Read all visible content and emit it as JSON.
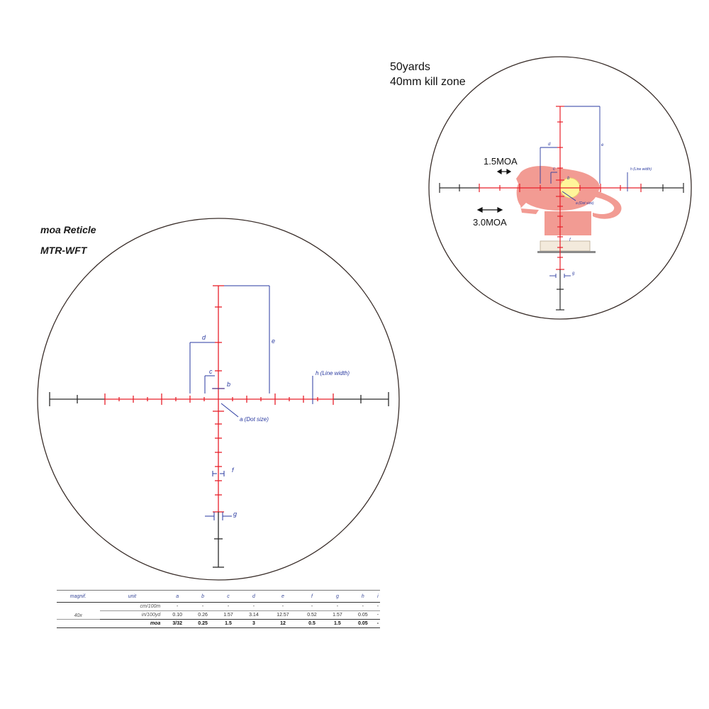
{
  "main_reticle": {
    "title": "moa Reticle",
    "model": "MTR-WFT",
    "labels": {
      "a": "a (Dot size)",
      "b": "b",
      "c": "c",
      "d": "d",
      "e": "e",
      "f": "f",
      "g": "g",
      "h": "h (Line width)"
    }
  },
  "inset": {
    "distance": "50yards",
    "kill_zone": "40mm kill zone",
    "moa_small": "1.5MOA",
    "moa_large": "3.0MOA",
    "labels": {
      "a": "a (Dot size)",
      "b": "b",
      "c": "c",
      "d": "d",
      "e": "e",
      "f": "f",
      "g": "g",
      "h": "h (Line width)"
    }
  },
  "spec_table": {
    "headers": [
      "magnif.",
      "unit",
      "a",
      "b",
      "c",
      "d",
      "e",
      "f",
      "g",
      "h",
      "i"
    ],
    "magnification": "40x",
    "rows": [
      {
        "unit": "cm/100m",
        "values": [
          "-",
          "-",
          "-",
          "-",
          "-",
          "-",
          "-",
          "-",
          "-"
        ]
      },
      {
        "unit": "in/100yd",
        "values": [
          "0.10",
          "0.26",
          "1.57",
          "3.14",
          "12.57",
          "0.52",
          "1.57",
          "0.05",
          "-"
        ]
      },
      {
        "unit": "moa",
        "values": [
          "3/32",
          "0.25",
          "1.5",
          "3",
          "12",
          "0.5",
          "1.5",
          "0.05",
          "-"
        ]
      }
    ]
  },
  "colors": {
    "reticle_red": "#e8212b",
    "reticle_black": "#2a2a2a",
    "dimension_blue": "#2a3aa0",
    "target_pink": "#f08a80",
    "kill_zone_yellow": "#fff59a"
  }
}
